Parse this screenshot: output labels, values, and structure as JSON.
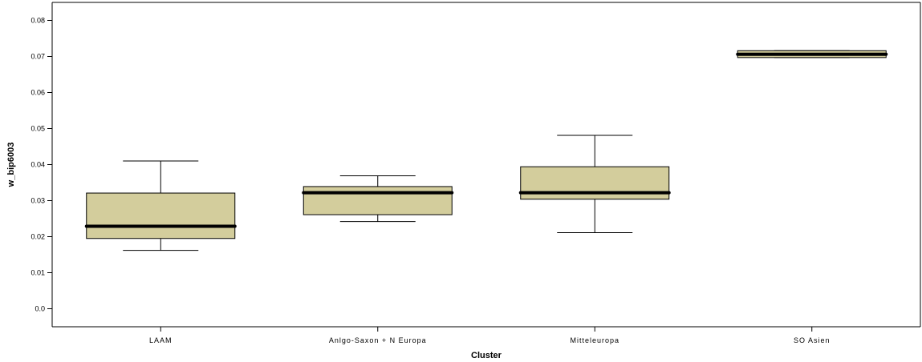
{
  "chart_data": {
    "type": "box",
    "xlabel": "Cluster",
    "ylabel": "w_bip6003",
    "ylim": [
      -0.005,
      0.085
    ],
    "yticks": [
      {
        "value": 0.0,
        "label": "0.0"
      },
      {
        "value": 0.01,
        "label": "0.01"
      },
      {
        "value": 0.02,
        "label": "0.02"
      },
      {
        "value": 0.03,
        "label": "0.03"
      },
      {
        "value": 0.04,
        "label": "0.04"
      },
      {
        "value": 0.05,
        "label": "0.05"
      },
      {
        "value": 0.06,
        "label": "0.06"
      },
      {
        "value": 0.07,
        "label": "0.07"
      },
      {
        "value": 0.08,
        "label": "0.08"
      }
    ],
    "categories": [
      "LAAM",
      "Anlgo-Saxon + N Europa",
      "Mitteleuropa",
      "SO Asien"
    ],
    "boxes": [
      {
        "category": "LAAM",
        "whisker_low": 0.0162,
        "q1": 0.0195,
        "median": 0.0229,
        "q3": 0.0321,
        "whisker_high": 0.041
      },
      {
        "category": "Anlgo-Saxon + N Europa",
        "whisker_low": 0.0242,
        "q1": 0.0261,
        "median": 0.0322,
        "q3": 0.0339,
        "whisker_high": 0.0369
      },
      {
        "category": "Mitteleuropa",
        "whisker_low": 0.0211,
        "q1": 0.0304,
        "median": 0.0322,
        "q3": 0.0394,
        "whisker_high": 0.0481
      },
      {
        "category": "SO Asien",
        "whisker_low": 0.0697,
        "q1": 0.0697,
        "median": 0.0706,
        "q3": 0.0716,
        "whisker_high": 0.0716
      }
    ],
    "box_color": "#d3cd9c",
    "grid": false,
    "legend": "none"
  }
}
